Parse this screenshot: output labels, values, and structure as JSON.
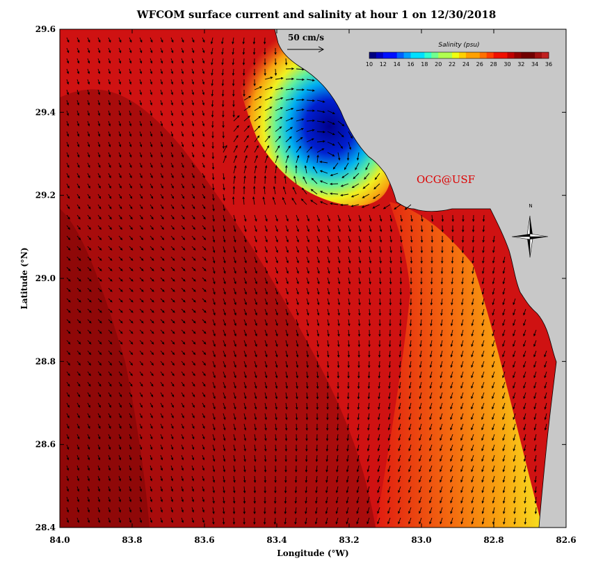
{
  "title": "WFCOM surface current and salinity at hour 1 on 12/30/2018",
  "axes": {
    "xlabel": "Longitude (°W)",
    "ylabel": "Latitude (°N)",
    "xticks": [
      "84.0",
      "83.8",
      "83.6",
      "83.4",
      "83.2",
      "83.0",
      "82.8",
      "82.6"
    ],
    "yticks": [
      "29.6",
      "29.4",
      "29.2",
      "29.0",
      "28.8",
      "28.6",
      "28.4"
    ]
  },
  "colorbar": {
    "title": "Salinity (psu)",
    "ticks": [
      "10",
      "12",
      "14",
      "16",
      "18",
      "20",
      "22",
      "24",
      "26",
      "28",
      "30",
      "32",
      "34",
      "36"
    ]
  },
  "scale_arrow": {
    "label": "50 cm/s"
  },
  "credit": "OCG@USF",
  "north_label": "N",
  "colors": {
    "land": "#c8c8c8",
    "credit": "#dd0000",
    "offshore": "#cc1010",
    "plume": "#00008c"
  }
}
